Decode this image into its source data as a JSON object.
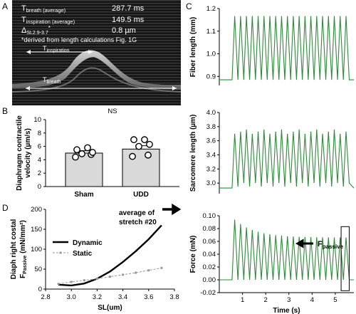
{
  "panel_letters": {
    "a": "A",
    "b": "B",
    "c": "C",
    "d": "D"
  },
  "panel_a": {
    "rows": [
      {
        "label_main": "T",
        "label_sub": "breath (average)",
        "value": "287.7 ms"
      },
      {
        "label_main": "T",
        "label_sub": "inspiration (average)",
        "value": "149.5 ms"
      },
      {
        "label_main": "Δ",
        "label_sub": "SL2.9-3.7",
        "label_sup": "*",
        "value": "0.8 µm"
      }
    ],
    "footnote": "*derived from length calculations Fig. 1G",
    "arrow1_main": "T",
    "arrow1_sub": "inspiration",
    "arrow2_main": "T",
    "arrow2_sub": "breath"
  },
  "chart_data": [
    {
      "panel": "B",
      "type": "bar",
      "title": "NS",
      "categories": [
        "Sham",
        "UDD"
      ],
      "values": [
        5.0,
        5.6
      ],
      "error": [
        0.35,
        0.5
      ],
      "points": [
        [
          4.4,
          4.8,
          4.9,
          5.1,
          5.5,
          5.8
        ],
        [
          4.5,
          4.7,
          6.0,
          6.3,
          7.0,
          7.0
        ]
      ],
      "ylabel_line1": "Diaphragm contractile",
      "ylabel_line2": "velocity (µm/s)",
      "yticks": [
        "0",
        "2",
        "4",
        "6",
        "8",
        "10"
      ],
      "ylim": [
        0,
        10
      ]
    },
    {
      "panel": "C-top",
      "type": "line",
      "ylabel": "Fiber length (mm)",
      "yticks": [
        "0.9",
        "1.0",
        "1.1",
        "1.2"
      ],
      "ylim": [
        0.86,
        1.2
      ],
      "baseline": 0.885,
      "peak": 1.167,
      "trough": 0.885,
      "cycles": 20,
      "x_start": 0.55,
      "x_end": 5.6
    },
    {
      "panel": "C-middle",
      "type": "line",
      "ylabel": "Sarcomere length (µm)",
      "yticks": [
        "3.0",
        "3.2",
        "3.4",
        "3.6",
        "3.8",
        "4.0"
      ],
      "ylim": [
        2.85,
        4.0
      ],
      "baseline": 2.93,
      "peak": 3.73,
      "trough": 2.95,
      "cycles": 20,
      "x_start": 0.55,
      "x_end": 5.6
    },
    {
      "panel": "C-bottom",
      "type": "line",
      "ylabel": "Force (mN)",
      "xlabel": "Time (s)",
      "xticks": [
        "1",
        "2",
        "3",
        "4",
        "5"
      ],
      "xlim": [
        0,
        5.8
      ],
      "yticks": [
        "-0.02",
        "0.00",
        "0.02",
        "0.04",
        "0.06",
        "0.08",
        "0.10"
      ],
      "ylim": [
        -0.02,
        0.1
      ],
      "first_peak": 0.094,
      "late_peak": 0.066,
      "baseline": 0.0,
      "cycles": 20,
      "x_start": 0.55,
      "x_end": 5.6,
      "annotation_main": "F",
      "annotation_sub": "passive"
    },
    {
      "panel": "D",
      "type": "line",
      "xlabel": "SL(um)",
      "ylabel_line1": "Diaph right costal",
      "ylabel_main": "F",
      "ylabel_sub": "Passive",
      "ylabel_unit": " (mN/mm²)",
      "xticks": [
        "2.8",
        "3.0",
        "3.2",
        "3.4",
        "3.6",
        "3.8"
      ],
      "xlim": [
        2.8,
        3.8
      ],
      "yticks": [
        "0",
        "50",
        "100",
        "150",
        "200"
      ],
      "ylim": [
        0,
        200
      ],
      "annotation_line1": "average of",
      "annotation_line2": "stretch #20",
      "series": [
        {
          "name": "Dynamic",
          "x": [
            2.9,
            3.0,
            3.1,
            3.2,
            3.3,
            3.4,
            3.5,
            3.6,
            3.7
          ],
          "y": [
            11,
            9,
            14,
            26,
            44,
            68,
            95,
            125,
            160
          ]
        },
        {
          "name": "Static",
          "x": [
            2.9,
            3.0,
            3.1,
            3.2,
            3.3,
            3.4,
            3.5,
            3.6,
            3.7
          ],
          "y": [
            13,
            18,
            22,
            26,
            31,
            36,
            41,
            47,
            53
          ]
        }
      ]
    }
  ]
}
